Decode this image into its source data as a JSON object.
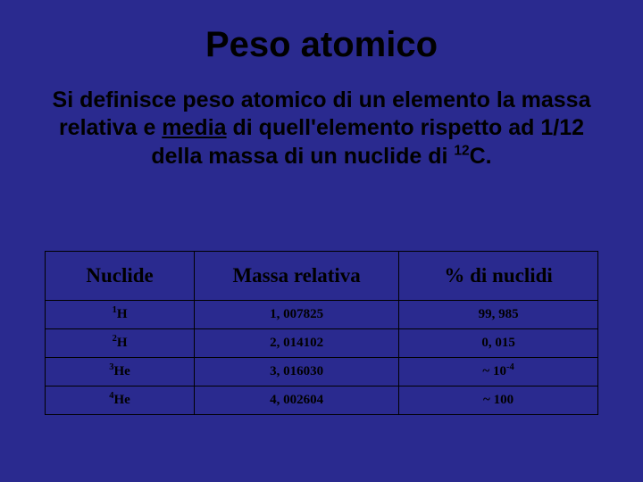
{
  "slide": {
    "title": "Peso atomico",
    "definition": {
      "line1_pre": "Si definisce peso atomico di un elemento la massa",
      "line2_pre": "relativa e ",
      "line2_underlined": "media",
      "line2_post": " di quell'elemento rispetto ad 1/12",
      "line3_pre": "della massa di un nuclide di ",
      "line3_sup": "12",
      "line3_post": "C."
    },
    "table": {
      "headers": {
        "nuclide": "Nuclide",
        "mass": "Massa relativa",
        "percent": "% di nuclidi"
      },
      "rows": [
        {
          "sup": "1",
          "sym": "H",
          "mass": "1, 007825",
          "pct_pre": "99, 985",
          "pct_sup": "",
          "pct_post": ""
        },
        {
          "sup": "2",
          "sym": "H",
          "mass": "2, 014102",
          "pct_pre": "0, 015",
          "pct_sup": "",
          "pct_post": ""
        },
        {
          "sup": "3",
          "sym": "He",
          "mass": "3, 016030",
          "pct_pre": "~ 10",
          "pct_sup": "-4",
          "pct_post": ""
        },
        {
          "sup": "4",
          "sym": "He",
          "mass": "4, 002604",
          "pct_pre": "~ 100",
          "pct_sup": "",
          "pct_post": ""
        }
      ]
    }
  },
  "style": {
    "background_color": "#2a2a8f",
    "title_color": "#000000",
    "text_color": "#000000",
    "border_color": "#000000",
    "title_fontsize": 40,
    "definition_fontsize": 25,
    "header_fontsize": 23,
    "cell_fontsize": 15
  }
}
